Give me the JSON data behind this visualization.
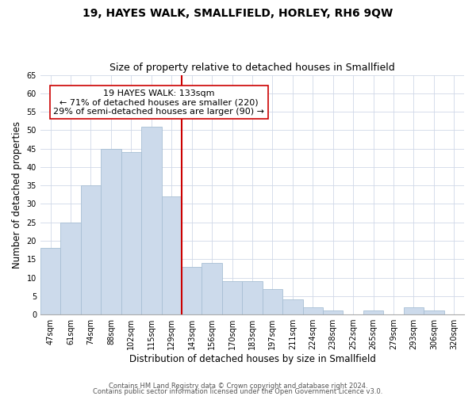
{
  "title": "19, HAYES WALK, SMALLFIELD, HORLEY, RH6 9QW",
  "subtitle": "Size of property relative to detached houses in Smallfield",
  "xlabel": "Distribution of detached houses by size in Smallfield",
  "ylabel": "Number of detached properties",
  "bar_labels": [
    "47sqm",
    "61sqm",
    "74sqm",
    "88sqm",
    "102sqm",
    "115sqm",
    "129sqm",
    "143sqm",
    "156sqm",
    "170sqm",
    "183sqm",
    "197sqm",
    "211sqm",
    "224sqm",
    "238sqm",
    "252sqm",
    "265sqm",
    "279sqm",
    "293sqm",
    "306sqm",
    "320sqm"
  ],
  "bar_values": [
    18,
    25,
    35,
    45,
    44,
    51,
    32,
    13,
    14,
    9,
    9,
    7,
    4,
    2,
    1,
    0,
    1,
    0,
    2,
    1,
    0
  ],
  "bar_color": "#ccdaeb",
  "bar_edge_color": "#a8bfd4",
  "highlight_line_color": "#cc0000",
  "annotation_line1": "19 HAYES WALK: 133sqm",
  "annotation_line2": "← 71% of detached houses are smaller (220)",
  "annotation_line3": "29% of semi-detached houses are larger (90) →",
  "annotation_box_color": "#ffffff",
  "annotation_box_edge": "#cc0000",
  "ylim": [
    0,
    65
  ],
  "yticks": [
    0,
    5,
    10,
    15,
    20,
    25,
    30,
    35,
    40,
    45,
    50,
    55,
    60,
    65
  ],
  "footer_line1": "Contains HM Land Registry data © Crown copyright and database right 2024.",
  "footer_line2": "Contains public sector information licensed under the Open Government Licence v3.0.",
  "title_fontsize": 10,
  "subtitle_fontsize": 9,
  "axis_label_fontsize": 8.5,
  "tick_fontsize": 7,
  "annotation_fontsize": 8,
  "footer_fontsize": 6
}
